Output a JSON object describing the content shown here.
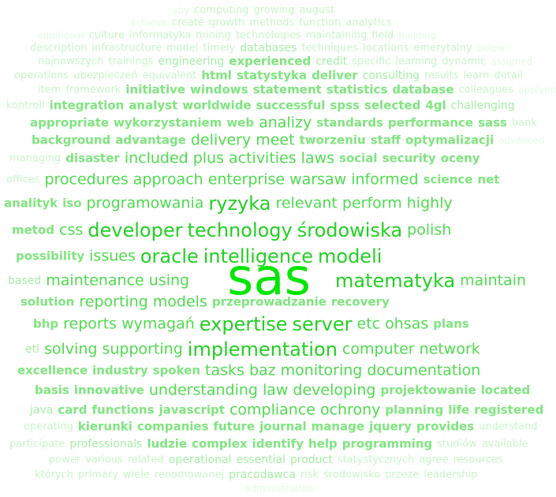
{
  "colors": {
    "background": "#ffffff",
    "tiers": [
      "#e3fbe3",
      "#c9f5c9",
      "#a6eea6",
      "#7fe57f",
      "#4fda4f",
      "#22d022",
      "#00e600"
    ]
  },
  "words": [
    {
      "t": "aby",
      "w": 1
    },
    {
      "t": "computing",
      "w": 2
    },
    {
      "t": "growing",
      "w": 2
    },
    {
      "t": "august",
      "w": 2
    },
    {
      "t": "achieve",
      "w": 1
    },
    {
      "t": "create",
      "w": 2
    },
    {
      "t": "growth",
      "w": 2
    },
    {
      "t": "methods",
      "w": 2
    },
    {
      "t": "function",
      "w": 2
    },
    {
      "t": "analytics",
      "w": 2
    },
    {
      "t": "additional",
      "w": 1
    },
    {
      "t": "culture",
      "w": 2
    },
    {
      "t": "informatyka",
      "w": 2
    },
    {
      "t": "mining",
      "w": 2
    },
    {
      "t": "technologies",
      "w": 2
    },
    {
      "t": "maintaining",
      "w": 2
    },
    {
      "t": "field",
      "w": 2
    },
    {
      "t": "building",
      "w": 1
    },
    {
      "t": "description",
      "w": 2
    },
    {
      "t": "infrastructure",
      "w": 2
    },
    {
      "t": "model",
      "w": 2
    },
    {
      "t": "timely",
      "w": 2
    },
    {
      "t": "databases",
      "w": 3
    },
    {
      "t": "techniques",
      "w": 2
    },
    {
      "t": "locations",
      "w": 2
    },
    {
      "t": "emerytalny",
      "w": 2
    },
    {
      "t": "below",
      "w": 1
    },
    {
      "t": "najnowszych",
      "w": 2
    },
    {
      "t": "trainings",
      "w": 2
    },
    {
      "t": "engineering",
      "w": 3
    },
    {
      "t": "experienced",
      "w": 4
    },
    {
      "t": "credit",
      "w": 3
    },
    {
      "t": "specific",
      "w": 2
    },
    {
      "t": "learning",
      "w": 2
    },
    {
      "t": "dynamic",
      "w": 2
    },
    {
      "t": "assigned",
      "w": 1
    },
    {
      "t": "operations",
      "w": 2
    },
    {
      "t": "ubezpieczeń",
      "w": 2
    },
    {
      "t": "equivalent",
      "w": 2
    },
    {
      "t": "html",
      "w": 4
    },
    {
      "t": "statystyka",
      "w": 4
    },
    {
      "t": "deliver",
      "w": 4
    },
    {
      "t": "consulting",
      "w": 3
    },
    {
      "t": "results",
      "w": 2
    },
    {
      "t": "learn",
      "w": 2
    },
    {
      "t": "detail",
      "w": 2
    },
    {
      "t": "item",
      "w": 2
    },
    {
      "t": "framework",
      "w": 2
    },
    {
      "t": "initiative",
      "w": 4
    },
    {
      "t": "windows",
      "w": 4
    },
    {
      "t": "statement",
      "w": 4
    },
    {
      "t": "statistics",
      "w": 4
    },
    {
      "t": "database",
      "w": 4
    },
    {
      "t": "colleagues",
      "w": 2
    },
    {
      "t": "applying",
      "w": 1
    },
    {
      "t": "kontroli",
      "w": 2
    },
    {
      "t": "integration",
      "w": 4
    },
    {
      "t": "analyst",
      "w": 4
    },
    {
      "t": "worldwide",
      "w": 4
    },
    {
      "t": "successful",
      "w": 4
    },
    {
      "t": "spss",
      "w": 4
    },
    {
      "t": "selected",
      "w": 4
    },
    {
      "t": "4gl",
      "w": 4
    },
    {
      "t": "challenging",
      "w": 3
    },
    {
      "t": "appropriate",
      "w": 4
    },
    {
      "t": "wykorzystaniem",
      "w": 4
    },
    {
      "t": "web",
      "w": 4
    },
    {
      "t": "analizy",
      "w": 5
    },
    {
      "t": "standards",
      "w": 4
    },
    {
      "t": "performance",
      "w": 4
    },
    {
      "t": "sass",
      "w": 4
    },
    {
      "t": "bank",
      "w": 2
    },
    {
      "t": "background",
      "w": 4
    },
    {
      "t": "advantage",
      "w": 4
    },
    {
      "t": "delivery",
      "w": 5
    },
    {
      "t": "meet",
      "w": 5
    },
    {
      "t": "tworzeniu",
      "w": 4
    },
    {
      "t": "staff",
      "w": 4
    },
    {
      "t": "optymalizacji",
      "w": 4
    },
    {
      "t": "advanced",
      "w": 1
    },
    {
      "t": "managing",
      "w": 2
    },
    {
      "t": "disaster",
      "w": 4
    },
    {
      "t": "included",
      "w": 5
    },
    {
      "t": "plus",
      "w": 5
    },
    {
      "t": "activities",
      "w": 5
    },
    {
      "t": "laws",
      "w": 5
    },
    {
      "t": "social",
      "w": 4
    },
    {
      "t": "security",
      "w": 4
    },
    {
      "t": "oceny",
      "w": 4
    },
    {
      "t": "offices",
      "w": 2
    },
    {
      "t": "procedures",
      "w": 5
    },
    {
      "t": "approach",
      "w": 5
    },
    {
      "t": "enterprise",
      "w": 5
    },
    {
      "t": "warsaw",
      "w": 5
    },
    {
      "t": "informed",
      "w": 5
    },
    {
      "t": "science",
      "w": 4
    },
    {
      "t": "net",
      "w": 4
    },
    {
      "t": "analityk",
      "w": 4
    },
    {
      "t": "iso",
      "w": 4
    },
    {
      "t": "programowania",
      "w": 5
    },
    {
      "t": "ryzyka",
      "w": 6
    },
    {
      "t": "relevant",
      "w": 5
    },
    {
      "t": "perform",
      "w": 5
    },
    {
      "t": "highly",
      "w": 5
    },
    {
      "t": "metod",
      "w": 4
    },
    {
      "t": "css",
      "w": 5
    },
    {
      "t": "developer",
      "w": 6
    },
    {
      "t": "technology",
      "w": 6
    },
    {
      "t": "środowiska",
      "w": 6
    },
    {
      "t": "polish",
      "w": 5
    },
    {
      "t": "possibility",
      "w": 4
    },
    {
      "t": "issues",
      "w": 5
    },
    {
      "t": "oracle",
      "w": 6
    },
    {
      "t": "intelligence",
      "w": 6
    },
    {
      "t": "modeli",
      "w": 6
    },
    {
      "t": "sas",
      "w": 7
    },
    {
      "t": "based",
      "w": 3
    },
    {
      "t": "maintenance",
      "w": 5
    },
    {
      "t": "using",
      "w": 5
    },
    {
      "t": "matematyka",
      "w": 6
    },
    {
      "t": "maintain",
      "w": 5
    },
    {
      "t": "solution",
      "w": 4
    },
    {
      "t": "reporting",
      "w": 5
    },
    {
      "t": "models",
      "w": 5
    },
    {
      "t": "przeprowadzanie",
      "w": 4
    },
    {
      "t": "recovery",
      "w": 4
    },
    {
      "t": "bhp",
      "w": 4
    },
    {
      "t": "reports",
      "w": 5
    },
    {
      "t": "wymagań",
      "w": 5
    },
    {
      "t": "expertise",
      "w": 6
    },
    {
      "t": "server",
      "w": 6
    },
    {
      "t": "etc",
      "w": 5
    },
    {
      "t": "ohsas",
      "w": 5
    },
    {
      "t": "plans",
      "w": 4
    },
    {
      "t": "etl",
      "w": 3
    },
    {
      "t": "solving",
      "w": 5
    },
    {
      "t": "supporting",
      "w": 5
    },
    {
      "t": "implementation",
      "w": 6
    },
    {
      "t": "computer",
      "w": 5
    },
    {
      "t": "network",
      "w": 5
    },
    {
      "t": "excellence",
      "w": 4
    },
    {
      "t": "industry",
      "w": 4
    },
    {
      "t": "spoken",
      "w": 4
    },
    {
      "t": "tasks",
      "w": 5
    },
    {
      "t": "baz",
      "w": 5
    },
    {
      "t": "monitoring",
      "w": 5
    },
    {
      "t": "documentation",
      "w": 5
    },
    {
      "t": "basis",
      "w": 4
    },
    {
      "t": "innovative",
      "w": 4
    },
    {
      "t": "understanding",
      "w": 5
    },
    {
      "t": "law",
      "w": 5
    },
    {
      "t": "developing",
      "w": 5
    },
    {
      "t": "projektowanie",
      "w": 4
    },
    {
      "t": "located",
      "w": 4
    },
    {
      "t": "java",
      "w": 3
    },
    {
      "t": "card",
      "w": 4
    },
    {
      "t": "functions",
      "w": 4
    },
    {
      "t": "javascript",
      "w": 4
    },
    {
      "t": "compliance",
      "w": 5
    },
    {
      "t": "ochrony",
      "w": 5
    },
    {
      "t": "planning",
      "w": 4
    },
    {
      "t": "life",
      "w": 4
    },
    {
      "t": "registered",
      "w": 4
    },
    {
      "t": "operating",
      "w": 2
    },
    {
      "t": "kierunki",
      "w": 4
    },
    {
      "t": "companies",
      "w": 4
    },
    {
      "t": "future",
      "w": 4
    },
    {
      "t": "journal",
      "w": 4
    },
    {
      "t": "manage",
      "w": 4
    },
    {
      "t": "jquery",
      "w": 4
    },
    {
      "t": "provides",
      "w": 4
    },
    {
      "t": "understand",
      "w": 2
    },
    {
      "t": "participate",
      "w": 2
    },
    {
      "t": "professionals",
      "w": 3
    },
    {
      "t": "ludzie",
      "w": 4
    },
    {
      "t": "complex",
      "w": 4
    },
    {
      "t": "identify",
      "w": 4
    },
    {
      "t": "help",
      "w": 4
    },
    {
      "t": "programming",
      "w": 4
    },
    {
      "t": "studiów",
      "w": 2
    },
    {
      "t": "available",
      "w": 2
    },
    {
      "t": "power",
      "w": 2
    },
    {
      "t": "various",
      "w": 2
    },
    {
      "t": "related",
      "w": 2
    },
    {
      "t": "operational",
      "w": 3
    },
    {
      "t": "essential",
      "w": 3
    },
    {
      "t": "product",
      "w": 3
    },
    {
      "t": "statystycznych",
      "w": 2
    },
    {
      "t": "agree",
      "w": 2
    },
    {
      "t": "resources",
      "w": 2
    },
    {
      "t": "których",
      "w": 2
    },
    {
      "t": "primary",
      "w": 2
    },
    {
      "t": "wiele",
      "w": 2
    },
    {
      "t": "renomowanej",
      "w": 2
    },
    {
      "t": "pracodawca",
      "w": 3
    },
    {
      "t": "risk",
      "w": 2
    },
    {
      "t": "środowisko",
      "w": 2
    },
    {
      "t": "przeze",
      "w": 2
    },
    {
      "t": "leadership",
      "w": 2
    },
    {
      "t": "administration",
      "w": 1
    }
  ]
}
